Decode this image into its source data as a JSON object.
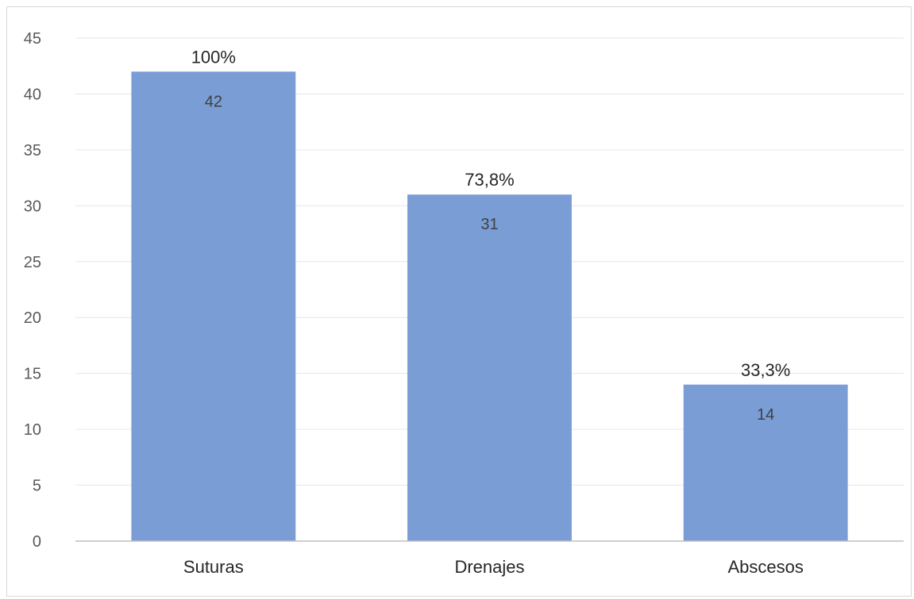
{
  "chart_data": {
    "type": "bar",
    "title": "",
    "xlabel": "",
    "ylabel": "",
    "ylim": [
      0,
      45
    ],
    "yticks": [
      0,
      5,
      10,
      15,
      20,
      25,
      30,
      35,
      40,
      45
    ],
    "grid": true,
    "legend": "none",
    "bar_color": "#7a9dd6",
    "categories": [
      "Suturas",
      "Drenajes",
      "Abscesos"
    ],
    "values": [
      42,
      31,
      14
    ],
    "value_labels": [
      "42",
      "31",
      "14"
    ],
    "percent_labels": [
      "100%",
      "73,8%",
      "33,3%"
    ]
  }
}
